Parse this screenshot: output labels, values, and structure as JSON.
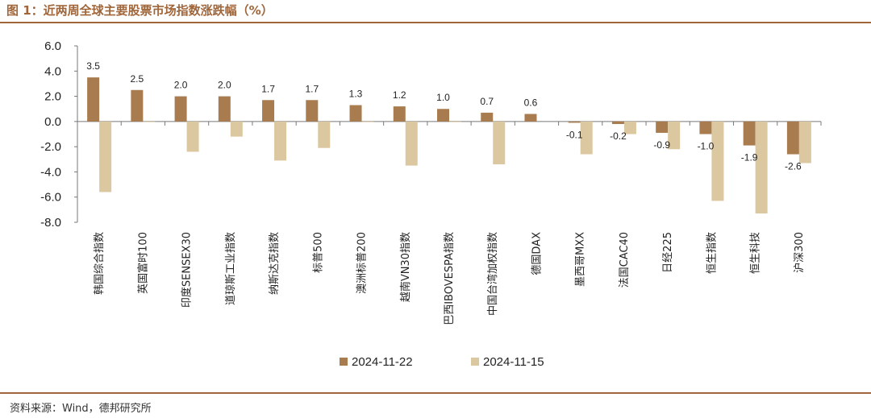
{
  "header": {
    "title": "图 1：近两周全球主要股票市场指数涨跌幅（%）"
  },
  "footer": {
    "source": "资料来源：Wind，德邦研究所"
  },
  "colors": {
    "accent": "#a0663a",
    "series1": "#a97c50",
    "series2": "#dcc8a0"
  },
  "chart_data": {
    "type": "bar",
    "title": "",
    "xlabel": "",
    "ylabel": "",
    "ylim": [
      -8,
      6
    ],
    "yticks": [
      "6.0",
      "4.0",
      "2.0",
      "0.0",
      "-2.0",
      "-4.0",
      "-6.0",
      "-8.0"
    ],
    "legend_position": "bottom",
    "categories": [
      "韩国综合指数",
      "英国富时100",
      "印度SENSEX30",
      "道琼斯工业指数",
      "纳斯达克指数",
      "标普500",
      "澳洲标普200",
      "越南VN30指数",
      "巴西IBOVESPA指数",
      "中国台湾加权指数",
      "德国DAX",
      "墨西哥MXX",
      "法国CAC40",
      "日经225",
      "恒生指数",
      "恒生科技",
      "沪深300"
    ],
    "series": [
      {
        "name": "2024-11-22",
        "values": [
          3.5,
          2.5,
          2.0,
          2.0,
          1.7,
          1.7,
          1.3,
          1.2,
          1.0,
          0.7,
          0.6,
          -0.1,
          -0.2,
          -0.9,
          -1.0,
          -1.9,
          -2.6
        ],
        "labels": [
          "3.5",
          "2.5",
          "2.0",
          "2.0",
          "1.7",
          "1.7",
          "1.3",
          "1.2",
          "1.0",
          "0.7",
          "0.6",
          "-0.1",
          "-0.2",
          "-0.9",
          "-1.0",
          "-1.9",
          "-2.6"
        ]
      },
      {
        "name": "2024-11-15",
        "values": [
          -5.6,
          -0.05,
          -2.4,
          -1.2,
          -3.1,
          -2.1,
          -0.05,
          -3.5,
          -0.05,
          -3.4,
          0,
          -2.6,
          -1.0,
          -2.2,
          -6.3,
          -7.3,
          -3.3
        ]
      }
    ]
  }
}
